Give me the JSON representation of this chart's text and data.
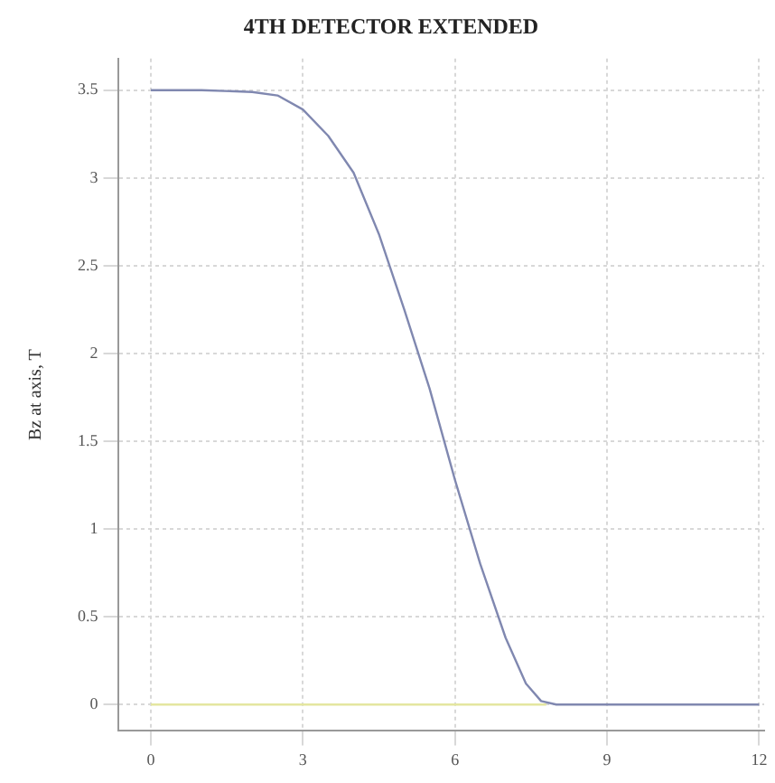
{
  "chart_data": {
    "type": "line",
    "title": "4TH DETECTOR EXTENDED",
    "ylabel": "Bz at axis, T",
    "series": [
      {
        "color": "#8088b0",
        "x": [
          0,
          1,
          2,
          2.5,
          3,
          3.5,
          4,
          4.5,
          5,
          5.5,
          6,
          6.5,
          7,
          7.4,
          7.7,
          8,
          9,
          12
        ],
        "values": [
          3.5,
          3.5,
          3.49,
          3.47,
          3.39,
          3.24,
          3.03,
          2.68,
          2.25,
          1.8,
          1.28,
          0.8,
          0.38,
          0.12,
          0.02,
          0,
          0,
          0
        ]
      },
      {
        "color": "#e4e6a0",
        "x": [
          0,
          7.8
        ],
        "values": [
          0,
          0
        ]
      }
    ],
    "xlim": [
      -0.65,
      12.1
    ],
    "xticks": [
      0,
      3,
      6,
      9,
      12
    ],
    "ylim": [
      -0.15,
      3.68
    ],
    "yticks": [
      0,
      0.5,
      1,
      1.5,
      2,
      2.5,
      3,
      3.5
    ],
    "grid": true,
    "legend": false,
    "marker": "none",
    "line_style": "solid"
  }
}
